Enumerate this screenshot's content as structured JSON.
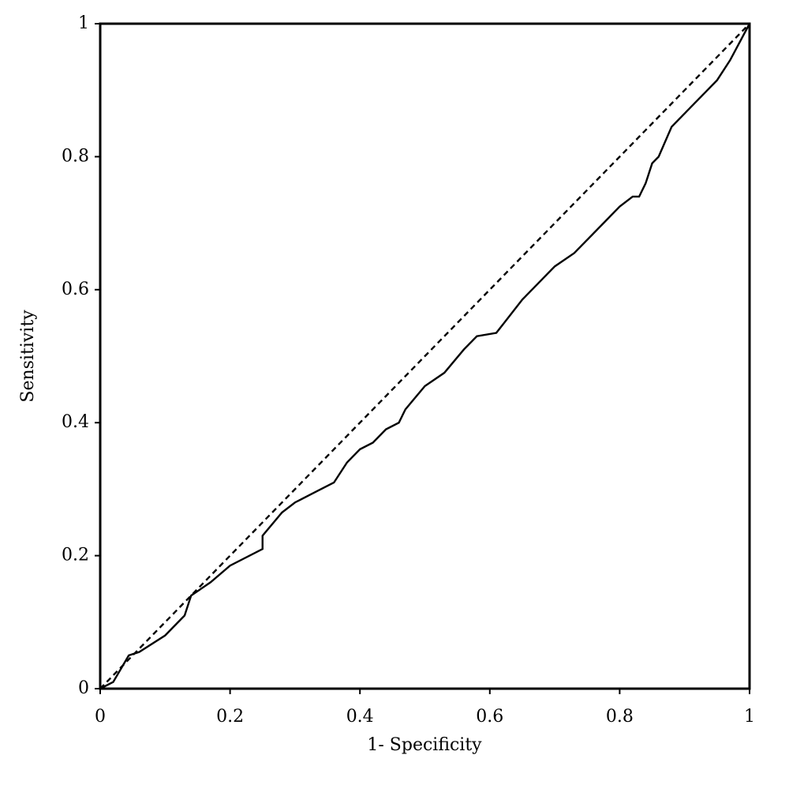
{
  "chart_data": {
    "type": "line",
    "xlabel": "1- Specificity",
    "ylabel": "Sensitivity",
    "xlim": [
      0,
      1
    ],
    "ylim": [
      0,
      1
    ],
    "xticks": [
      0,
      0.2,
      0.4,
      0.6,
      0.8,
      1
    ],
    "yticks": [
      0,
      0.2,
      0.4,
      0.6,
      0.8,
      1
    ],
    "grid": false,
    "series": [
      {
        "color": "#000000",
        "line_style": "solid",
        "x": [
          0,
          0.02,
          0.044,
          0.06,
          0.1,
          0.13,
          0.14,
          0.17,
          0.2,
          0.25,
          0.25,
          0.28,
          0.3,
          0.33,
          0.36,
          0.38,
          0.4,
          0.42,
          0.44,
          0.46,
          0.47,
          0.5,
          0.53,
          0.56,
          0.58,
          0.61,
          0.63,
          0.65,
          0.7,
          0.73,
          0.76,
          0.8,
          0.82,
          0.83,
          0.84,
          0.85,
          0.86,
          0.88,
          0.9,
          0.93,
          0.95,
          0.97,
          1
        ],
        "values": [
          0,
          0.01,
          0.05,
          0.055,
          0.08,
          0.11,
          0.14,
          0.16,
          0.185,
          0.21,
          0.23,
          0.265,
          0.28,
          0.295,
          0.31,
          0.34,
          0.36,
          0.37,
          0.39,
          0.4,
          0.42,
          0.455,
          0.475,
          0.51,
          0.53,
          0.535,
          0.56,
          0.585,
          0.635,
          0.655,
          0.685,
          0.725,
          0.74,
          0.74,
          0.76,
          0.79,
          0.8,
          0.845,
          0.865,
          0.895,
          0.915,
          0.945,
          1
        ]
      },
      {
        "color": "#000000",
        "line_style": "dashed",
        "x": [
          0,
          1
        ],
        "values": [
          0,
          1
        ]
      }
    ]
  }
}
